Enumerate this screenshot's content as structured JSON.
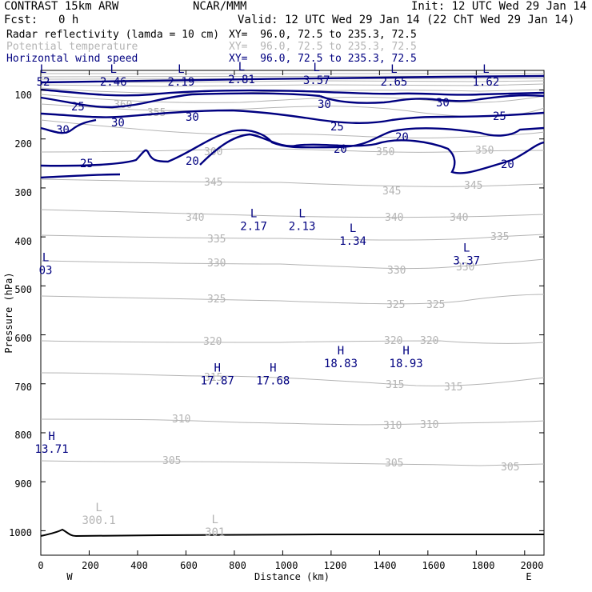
{
  "header": {
    "model": "CONTRAST 15km ARW",
    "org": "NCAR/MMM",
    "init": "Init: 12 UTC Wed 29 Jan 14",
    "fcst_label": "Fcst:",
    "fcst_value": "0 h",
    "valid": "Valid: 12 UTC Wed 29 Jan 14 (22 ChT Wed 29 Jan 14)"
  },
  "legend": [
    {
      "field": "Radar reflectivity (lamda = 10 cm)",
      "xy": "XY=  96.0, 72.5 to 235.3, 72.5",
      "color": "#000000"
    },
    {
      "field": "Potential temperature",
      "xy": "XY=  96.0, 72.5 to 235.3, 72.5",
      "color": "#b4b4b4"
    },
    {
      "field": "Horizontal wind speed",
      "xy": "XY=  96.0, 72.5 to 235.3, 72.5",
      "color": "#000080"
    }
  ],
  "chart_data": {
    "type": "cross-section contour",
    "xlabel": "Distance (km)",
    "ylabel": "Pressure (hPa)",
    "xlim": [
      0,
      2080
    ],
    "ylim": [
      1050,
      60
    ],
    "y_scale": "linear-pressure (top ~60 hPa, bottom ~1050 hPa)",
    "xticks": [
      0,
      200,
      400,
      600,
      800,
      1000,
      1200,
      1400,
      1600,
      1800,
      2000
    ],
    "yticks": [
      100,
      200,
      300,
      400,
      500,
      600,
      700,
      800,
      900,
      1000
    ],
    "x_end_labels": {
      "left": "W",
      "right": "E"
    },
    "theta_contours": [
      {
        "label": "300",
        "level": 300
      },
      {
        "label": "301",
        "level": 301
      },
      {
        "label": "305",
        "level": 305
      },
      {
        "label": "310",
        "level": 310
      },
      {
        "label": "315",
        "level": 315
      },
      {
        "label": "320",
        "level": 320
      },
      {
        "label": "325",
        "level": 325
      },
      {
        "label": "330",
        "level": 330
      },
      {
        "label": "335",
        "level": 335
      },
      {
        "label": "340",
        "level": 340
      },
      {
        "label": "345",
        "level": 345
      },
      {
        "label": "350",
        "level": 350
      },
      {
        "label": "355",
        "level": 355
      },
      {
        "label": "360",
        "level": 360
      }
    ],
    "wind_contours": [
      20,
      25,
      30
    ],
    "extrema": [
      {
        "type": "L",
        "value": "52",
        "x": 10,
        "p": 65
      },
      {
        "type": "L",
        "value": "2.46",
        "x": 300,
        "p": 65
      },
      {
        "type": "L",
        "value": "2.19",
        "x": 580,
        "p": 65
      },
      {
        "type": "L",
        "value": "2.81",
        "x": 830,
        "p": 60
      },
      {
        "type": "L",
        "value": "3.57",
        "x": 1140,
        "p": 62
      },
      {
        "type": "L",
        "value": "2.65",
        "x": 1460,
        "p": 65
      },
      {
        "type": "L",
        "value": "1.62",
        "x": 1840,
        "p": 65
      },
      {
        "type": "L",
        "value": "2.17",
        "x": 880,
        "p": 360
      },
      {
        "type": "L",
        "value": "2.13",
        "x": 1080,
        "p": 360
      },
      {
        "type": "L",
        "value": "1.34",
        "x": 1290,
        "p": 390
      },
      {
        "type": "L",
        "value": "3.37",
        "x": 1760,
        "p": 430
      },
      {
        "type": "L",
        "value": "03",
        "x": 20,
        "p": 450
      },
      {
        "type": "H",
        "value": "18.83",
        "x": 1240,
        "p": 640
      },
      {
        "type": "H",
        "value": "18.93",
        "x": 1510,
        "p": 640
      },
      {
        "type": "H",
        "value": "17.87",
        "x": 730,
        "p": 675
      },
      {
        "type": "H",
        "value": "17.68",
        "x": 960,
        "p": 675
      },
      {
        "type": "H",
        "value": "13.71",
        "x": 45,
        "p": 815
      },
      {
        "type": "L",
        "value": "300.1",
        "x": 240,
        "p": 960
      },
      {
        "type": "L",
        "value": "301",
        "x": 720,
        "p": 985
      }
    ]
  }
}
